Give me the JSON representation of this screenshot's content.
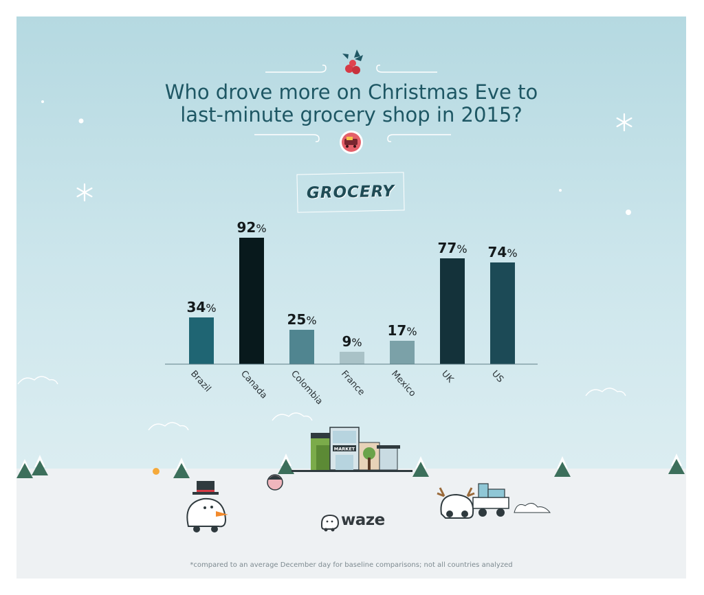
{
  "title_lines": [
    "Who drove more on Christmas Eve to",
    "last-minute grocery shop in 2015?"
  ],
  "category": "GROCERY",
  "footnote": "*compared to an average December day for baseline comparisons; not all countries analyzed",
  "brand": "waze",
  "market_sign": "MARKET",
  "colors": {
    "title": "#1e5764",
    "background": "#c6e2e9",
    "ground": "#eef1f3"
  },
  "icons": [
    "holly-berries-icon",
    "grocery-cart-badge-icon",
    "snowflake-icon",
    "waze-logo-icon",
    "snowman-car-icon",
    "reindeer-car-icon",
    "market-storefront-icon",
    "pine-tree-icon"
  ],
  "chart_data": {
    "type": "bar",
    "categories": [
      "Brazil",
      "Canada",
      "Colombia",
      "France",
      "Mexico",
      "UK",
      "US"
    ],
    "values": [
      34,
      92,
      25,
      9,
      17,
      77,
      74
    ],
    "value_unit": "%",
    "data_labels": [
      "34",
      "92",
      "25",
      "9",
      "17",
      "77",
      "74"
    ],
    "bar_colors": [
      "#1f6573",
      "#08191c",
      "#508590",
      "#a9c2c7",
      "#7ba1a8",
      "#14323a",
      "#1c4a56"
    ],
    "ylim": [
      0,
      100
    ],
    "grid": false,
    "legend": "none"
  }
}
